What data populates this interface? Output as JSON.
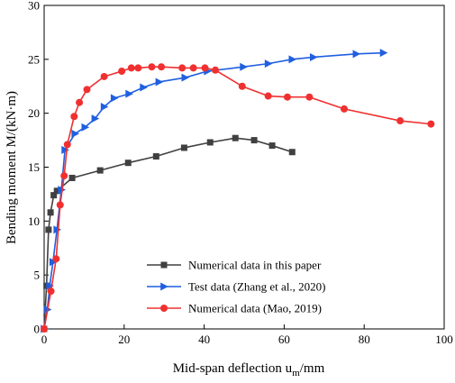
{
  "chart_data": {
    "type": "line",
    "xlabel_main": "Mid-span deflection u",
    "xlabel_sub": "m",
    "xlabel_tail": "/mm",
    "xlabel": "Mid-span deflection u_m/mm",
    "ylabel": "Bending moment M/(kN·m)",
    "xlim": [
      0,
      100
    ],
    "ylim": [
      0,
      30
    ],
    "xticks": [
      "0",
      "20",
      "40",
      "60",
      "80",
      "100"
    ],
    "yticks": [
      "0",
      "5",
      "10",
      "15",
      "20",
      "25",
      "30"
    ],
    "xtick_values": [
      0,
      20,
      40,
      60,
      80,
      100
    ],
    "ytick_values": [
      0,
      5,
      10,
      15,
      20,
      25,
      30
    ],
    "legend_position": "bottom-center",
    "grid": false,
    "series": [
      {
        "name": "Numerical data in this paper",
        "color": "#404040",
        "marker": "square",
        "x": [
          0,
          0.6,
          1.1,
          1.6,
          2.4,
          3.2,
          7.0,
          14.0,
          21.0,
          28.0,
          35.0,
          41.5,
          47.8,
          52.5,
          57.0,
          62.0
        ],
        "y": [
          0,
          4.0,
          9.2,
          10.8,
          12.4,
          12.8,
          14.0,
          14.7,
          15.4,
          16.0,
          16.8,
          17.3,
          17.7,
          17.5,
          17.0,
          16.4
        ]
      },
      {
        "name": "Test data (Zhang et al., 2020)",
        "color": "#1f5fe0",
        "marker": "triangle-right",
        "x": [
          0,
          0.8,
          1.4,
          2.2,
          3.2,
          4.3,
          5.2,
          7.7,
          10.2,
          12.7,
          15.0,
          17.5,
          21.2,
          24.8,
          28.7,
          35.2,
          40.8,
          49.8,
          56.0,
          62.0,
          67.3,
          78.0,
          84.8
        ],
        "y": [
          0,
          1.8,
          4.0,
          6.2,
          9.2,
          12.9,
          16.6,
          18.1,
          18.7,
          19.5,
          20.6,
          21.4,
          21.8,
          22.4,
          22.9,
          23.3,
          23.9,
          24.3,
          24.6,
          25.0,
          25.2,
          25.5,
          25.6
        ]
      },
      {
        "name": "Numerical data (Mao, 2019)",
        "color": "#f03030",
        "marker": "circle",
        "x": [
          0,
          1.7,
          3.0,
          4.0,
          5.0,
          5.8,
          7.5,
          8.8,
          10.7,
          15.0,
          19.4,
          21.8,
          23.5,
          26.9,
          29.3,
          34.5,
          37.3,
          40.2,
          42.8,
          49.5,
          56.0,
          60.8,
          66.3,
          75.0,
          89.0,
          96.7
        ],
        "y": [
          0,
          3.5,
          6.5,
          11.5,
          14.2,
          17.1,
          19.7,
          21.0,
          22.2,
          23.4,
          23.9,
          24.2,
          24.2,
          24.3,
          24.3,
          24.2,
          24.2,
          24.2,
          24.0,
          22.5,
          21.6,
          21.5,
          21.5,
          20.4,
          19.3,
          19.0
        ]
      }
    ]
  }
}
